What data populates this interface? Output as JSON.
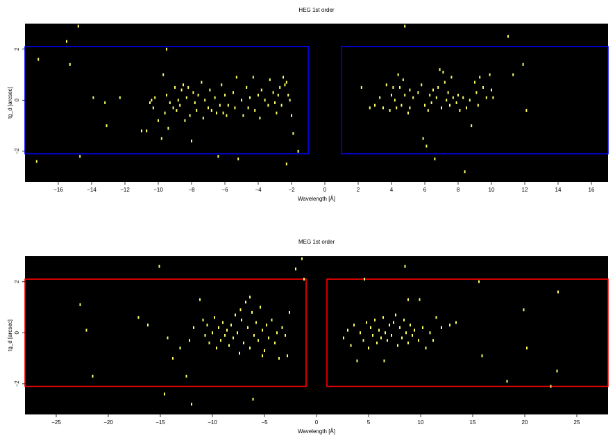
{
  "chart_data": [
    {
      "type": "scatter",
      "title": "HEG 1st order",
      "xlabel": "Wavelength [Å]",
      "ylabel": "tg_d [arcsec]",
      "xlim": [
        -18,
        17
      ],
      "ylim": [
        -3.2,
        3
      ],
      "background": "#000000",
      "point_color": "#ffff66",
      "region_color": "#0000ff",
      "xticks": [
        -16,
        -14,
        -12,
        -10,
        -8,
        -6,
        -4,
        -2,
        0,
        2,
        4,
        6,
        8,
        10,
        12,
        14,
        16
      ],
      "yticks": [
        -2,
        0,
        2
      ],
      "grid": false,
      "regions": [
        {
          "x": [
            -18,
            -1
          ],
          "y": [
            -2.1,
            2.1
          ]
        },
        {
          "x": [
            1,
            17
          ],
          "y": [
            -2.1,
            2.1
          ]
        }
      ],
      "points": [
        [
          -17.2,
          1.6
        ],
        [
          -15.5,
          2.3
        ],
        [
          -15.3,
          1.4
        ],
        [
          -14.8,
          2.9
        ],
        [
          -17.3,
          -2.4
        ],
        [
          -14.7,
          -2.2
        ],
        [
          -13.9,
          0.1
        ],
        [
          -13.2,
          -0.1
        ],
        [
          -13.1,
          -1.0
        ],
        [
          -12.3,
          0.1
        ],
        [
          -11.0,
          -1.2
        ],
        [
          -10.7,
          -1.2
        ],
        [
          -10.5,
          -0.1
        ],
        [
          -10.4,
          0.0
        ],
        [
          -10.3,
          -0.3
        ],
        [
          -10.2,
          0.1
        ],
        [
          -10.0,
          -0.8
        ],
        [
          -9.8,
          -1.5
        ],
        [
          -9.7,
          1.0
        ],
        [
          -9.6,
          -0.5
        ],
        [
          -9.5,
          0.2
        ],
        [
          -9.4,
          -1.1
        ],
        [
          -9.3,
          -0.1
        ],
        [
          -9.1,
          -0.3
        ],
        [
          -9.0,
          0.5
        ],
        [
          -8.9,
          -0.4
        ],
        [
          -8.8,
          0.0
        ],
        [
          -8.7,
          -0.2
        ],
        [
          -8.6,
          0.4
        ],
        [
          -8.5,
          0.6
        ],
        [
          -8.4,
          -0.8
        ],
        [
          -8.3,
          0.1
        ],
        [
          -8.2,
          0.5
        ],
        [
          -8.1,
          -0.6
        ],
        [
          -8.0,
          -1.6
        ],
        [
          -7.9,
          0.3
        ],
        [
          -7.8,
          -0.1
        ],
        [
          -7.7,
          -0.4
        ],
        [
          -7.6,
          0.2
        ],
        [
          -7.4,
          0.7
        ],
        [
          -7.3,
          -0.7
        ],
        [
          -7.2,
          0.0
        ],
        [
          -7.0,
          -0.3
        ],
        [
          -6.9,
          0.4
        ],
        [
          -6.8,
          -0.4
        ],
        [
          -6.6,
          0.1
        ],
        [
          -6.5,
          -0.5
        ],
        [
          -6.4,
          -2.2
        ],
        [
          -6.3,
          -0.2
        ],
        [
          -6.2,
          0.6
        ],
        [
          -6.1,
          -0.5
        ],
        [
          -6.0,
          0.2
        ],
        [
          -5.9,
          -0.6
        ],
        [
          -5.8,
          -0.2
        ],
        [
          -5.5,
          0.3
        ],
        [
          -5.4,
          -0.3
        ],
        [
          -5.3,
          0.9
        ],
        [
          -5.2,
          -2.3
        ],
        [
          -5.0,
          0.0
        ],
        [
          -4.9,
          -0.6
        ],
        [
          -4.7,
          0.5
        ],
        [
          -4.6,
          -0.3
        ],
        [
          -4.5,
          0.1
        ],
        [
          -4.3,
          0.9
        ],
        [
          -4.2,
          -0.4
        ],
        [
          -4.0,
          0.2
        ],
        [
          -3.9,
          -0.7
        ],
        [
          -3.8,
          0.4
        ],
        [
          -3.6,
          0.0
        ],
        [
          -3.4,
          -0.2
        ],
        [
          -3.3,
          0.8
        ],
        [
          -3.1,
          0.3
        ],
        [
          -3.0,
          -0.1
        ],
        [
          -2.9,
          -0.5
        ],
        [
          -2.8,
          0.2
        ],
        [
          -2.7,
          0.5
        ],
        [
          -2.6,
          -0.2
        ],
        [
          -2.5,
          0.9
        ],
        [
          -2.4,
          0.6
        ],
        [
          -2.3,
          -2.5
        ],
        [
          -2.2,
          0.2
        ],
        [
          -2.1,
          0.0
        ],
        [
          -2.0,
          -0.6
        ],
        [
          -1.9,
          -1.3
        ],
        [
          -2.3,
          0.7
        ],
        [
          -9.5,
          2.0
        ],
        [
          -1.6,
          -2.0
        ],
        [
          2.2,
          0.5
        ],
        [
          2.7,
          -0.3
        ],
        [
          3.0,
          -0.2
        ],
        [
          3.3,
          0.1
        ],
        [
          3.5,
          -0.3
        ],
        [
          3.7,
          0.6
        ],
        [
          3.9,
          -0.4
        ],
        [
          4.0,
          0.2
        ],
        [
          4.1,
          0.5
        ],
        [
          4.2,
          0.0
        ],
        [
          4.3,
          -0.3
        ],
        [
          4.4,
          1.0
        ],
        [
          4.5,
          0.5
        ],
        [
          4.6,
          -0.2
        ],
        [
          4.7,
          0.8
        ],
        [
          4.8,
          0.2
        ],
        [
          5.0,
          -0.5
        ],
        [
          5.1,
          0.4
        ],
        [
          5.3,
          0.1
        ],
        [
          5.6,
          0.3
        ],
        [
          5.8,
          0.6
        ],
        [
          5.9,
          -1.5
        ],
        [
          6.0,
          -0.2
        ],
        [
          6.1,
          -1.8
        ],
        [
          6.2,
          -0.4
        ],
        [
          6.3,
          0.2
        ],
        [
          6.4,
          -0.1
        ],
        [
          6.5,
          0.4
        ],
        [
          6.6,
          -2.3
        ],
        [
          6.7,
          0.1
        ],
        [
          6.8,
          0.5
        ],
        [
          6.9,
          1.2
        ],
        [
          7.0,
          -0.3
        ],
        [
          7.1,
          1.1
        ],
        [
          7.2,
          0.7
        ],
        [
          7.3,
          0.0
        ],
        [
          7.4,
          0.3
        ],
        [
          7.5,
          -0.2
        ],
        [
          7.6,
          0.9
        ],
        [
          7.7,
          0.1
        ],
        [
          7.9,
          -0.1
        ],
        [
          8.0,
          0.2
        ],
        [
          8.1,
          -0.4
        ],
        [
          8.3,
          0.1
        ],
        [
          8.5,
          -0.3
        ],
        [
          8.7,
          0.0
        ],
        [
          8.8,
          -1.0
        ],
        [
          9.0,
          0.7
        ],
        [
          9.1,
          0.3
        ],
        [
          9.2,
          -0.2
        ],
        [
          9.3,
          0.9
        ],
        [
          9.5,
          0.5
        ],
        [
          9.7,
          0.1
        ],
        [
          9.9,
          1.0
        ],
        [
          10.0,
          0.4
        ],
        [
          10.1,
          0.1
        ],
        [
          8.4,
          -2.8
        ],
        [
          11.0,
          2.5
        ],
        [
          11.3,
          1.0
        ],
        [
          12.1,
          -0.4
        ],
        [
          11.9,
          1.4
        ],
        [
          5.1,
          -0.3
        ],
        [
          4.8,
          2.9
        ]
      ]
    },
    {
      "type": "scatter",
      "title": "MEG 1st order",
      "xlabel": "Wavelength [Å]",
      "ylabel": "tg_d [arcsec]",
      "xlim": [
        -28,
        28
      ],
      "ylim": [
        -3.2,
        3
      ],
      "background": "#000000",
      "point_color": "#ffff66",
      "region_color": "#ff0000",
      "xticks": [
        -25,
        -20,
        -15,
        -10,
        -5,
        0,
        5,
        10,
        15,
        20,
        25
      ],
      "yticks": [
        -2,
        0,
        2
      ],
      "grid": false,
      "regions": [
        {
          "x": [
            -28,
            -1
          ],
          "y": [
            -2.1,
            2.1
          ]
        },
        {
          "x": [
            1,
            28
          ],
          "y": [
            -2.1,
            2.1
          ]
        }
      ],
      "points": [
        [
          -22.7,
          1.1
        ],
        [
          -22.1,
          0.1
        ],
        [
          -21.5,
          -1.7
        ],
        [
          -17.1,
          0.6
        ],
        [
          -16.2,
          0.3
        ],
        [
          -15.1,
          2.6
        ],
        [
          -14.3,
          -0.2
        ],
        [
          -13.8,
          -1.0
        ],
        [
          -12.5,
          -1.7
        ],
        [
          -12.2,
          -0.3
        ],
        [
          -12.0,
          -2.8
        ],
        [
          -11.8,
          0.2
        ],
        [
          -11.2,
          1.3
        ],
        [
          -10.9,
          0.5
        ],
        [
          -10.7,
          -0.1
        ],
        [
          -10.5,
          0.3
        ],
        [
          -10.3,
          -0.4
        ],
        [
          -10.0,
          0.0
        ],
        [
          -9.8,
          0.6
        ],
        [
          -9.6,
          -0.6
        ],
        [
          -9.4,
          0.2
        ],
        [
          -9.2,
          -0.3
        ],
        [
          -9.0,
          0.4
        ],
        [
          -8.8,
          -0.1
        ],
        [
          -8.6,
          0.1
        ],
        [
          -8.4,
          -0.5
        ],
        [
          -8.2,
          0.3
        ],
        [
          -8.0,
          -0.2
        ],
        [
          -7.8,
          0.7
        ],
        [
          -7.6,
          0.0
        ],
        [
          -7.4,
          -0.8
        ],
        [
          -7.2,
          0.5
        ],
        [
          -7.0,
          -0.4
        ],
        [
          -6.8,
          1.2
        ],
        [
          -6.6,
          0.2
        ],
        [
          -6.4,
          -0.6
        ],
        [
          -6.2,
          0.8
        ],
        [
          -6.0,
          -0.1
        ],
        [
          -5.8,
          0.4
        ],
        [
          -5.6,
          -0.3
        ],
        [
          -5.4,
          1.0
        ],
        [
          -5.2,
          0.1
        ],
        [
          -5.0,
          -0.7
        ],
        [
          -4.8,
          0.3
        ],
        [
          -4.6,
          -0.2
        ],
        [
          -4.3,
          0.5
        ],
        [
          -4.0,
          -0.4
        ],
        [
          -3.8,
          0.0
        ],
        [
          -3.6,
          -1.0
        ],
        [
          -3.3,
          0.2
        ],
        [
          -3.0,
          -0.1
        ],
        [
          -2.8,
          -0.9
        ],
        [
          -2.6,
          0.8
        ],
        [
          -2.0,
          2.5
        ],
        [
          -1.4,
          2.9
        ],
        [
          -6.1,
          -2.6
        ],
        [
          -5.2,
          -0.9
        ],
        [
          -7.3,
          0.9
        ],
        [
          -6.4,
          1.4
        ],
        [
          -1.2,
          2.1
        ],
        [
          -14.6,
          -2.4
        ],
        [
          -13.1,
          -0.6
        ],
        [
          2.6,
          -0.2
        ],
        [
          3.0,
          0.1
        ],
        [
          3.3,
          -0.5
        ],
        [
          3.6,
          0.3
        ],
        [
          3.9,
          -1.1
        ],
        [
          4.2,
          0.0
        ],
        [
          4.5,
          -0.3
        ],
        [
          4.8,
          0.4
        ],
        [
          5.0,
          -0.6
        ],
        [
          5.2,
          0.2
        ],
        [
          5.4,
          -0.1
        ],
        [
          5.6,
          0.5
        ],
        [
          5.8,
          -0.4
        ],
        [
          6.0,
          0.1
        ],
        [
          6.2,
          -0.2
        ],
        [
          6.4,
          0.6
        ],
        [
          6.6,
          0.0
        ],
        [
          6.8,
          -0.3
        ],
        [
          7.0,
          0.3
        ],
        [
          7.2,
          -0.1
        ],
        [
          7.4,
          0.4
        ],
        [
          7.6,
          0.7
        ],
        [
          7.8,
          -0.5
        ],
        [
          8.0,
          0.2
        ],
        [
          8.2,
          -0.2
        ],
        [
          8.4,
          0.5
        ],
        [
          8.6,
          0.0
        ],
        [
          8.8,
          -0.4
        ],
        [
          9.0,
          0.3
        ],
        [
          9.2,
          -0.1
        ],
        [
          9.4,
          0.1
        ],
        [
          9.8,
          -0.3
        ],
        [
          10.2,
          0.2
        ],
        [
          10.5,
          -0.6
        ],
        [
          10.9,
          0.0
        ],
        [
          11.2,
          -0.3
        ],
        [
          11.5,
          0.6
        ],
        [
          12.0,
          0.2
        ],
        [
          13.4,
          0.4
        ],
        [
          15.6,
          2.0
        ],
        [
          15.9,
          -0.9
        ],
        [
          18.3,
          -1.9
        ],
        [
          19.9,
          0.9
        ],
        [
          20.2,
          -0.6
        ],
        [
          22.5,
          -2.1
        ],
        [
          23.1,
          -1.5
        ],
        [
          23.2,
          1.6
        ],
        [
          8.8,
          1.3
        ],
        [
          6.5,
          -1.1
        ],
        [
          4.6,
          2.1
        ],
        [
          8.5,
          2.6
        ],
        [
          9.9,
          1.3
        ],
        [
          12.8,
          0.3
        ]
      ]
    }
  ]
}
